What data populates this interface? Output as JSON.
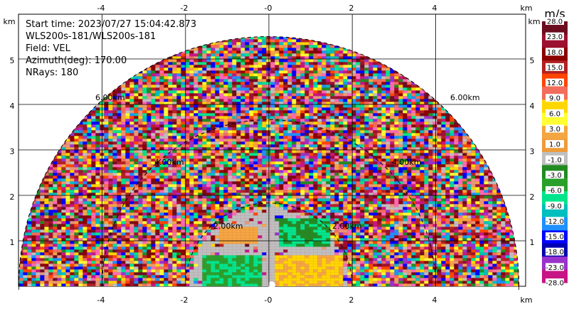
{
  "info": {
    "start_time": "Start time: 2023/07/27 15:04:42.873",
    "instrument": "WLS200s-181/WLS200s-181",
    "field": "Field: VEL",
    "azimuth": "Azimuth(deg): 170.00",
    "nrays": "NRays: 180"
  },
  "axes": {
    "unit_label": "km",
    "x_ticks": [
      "-4",
      "-2",
      "-0",
      "2",
      "4"
    ],
    "y_ticks": [
      "1",
      "2",
      "3",
      "4",
      "5"
    ],
    "x_tick_values": [
      -4,
      -2,
      0,
      2,
      4
    ],
    "y_tick_values": [
      1,
      2,
      3,
      4,
      5
    ],
    "x_range": [
      -6,
      6
    ],
    "y_range": [
      0,
      6
    ]
  },
  "rings": {
    "labels": [
      "2.00km",
      "2.00km",
      "4.00km",
      "4.00km",
      "6.00km",
      "6.00km"
    ],
    "ranges_km": [
      2,
      4,
      6
    ]
  },
  "colorbar": {
    "unit": "m/s",
    "labels": [
      "28.0",
      "23.0",
      "18.0",
      "15.0",
      "12.0",
      "9.0",
      "6.0",
      "3.0",
      "1.0",
      "-1.0",
      "-3.0",
      "-6.0",
      "-9.0",
      "-12.0",
      "-15.0",
      "-18.0",
      "-23.0",
      "-28.0"
    ],
    "colors": [
      "#6b0d1f",
      "#9c1030",
      "#8b0000",
      "#b22222",
      "#ff4500",
      "#f26d5b",
      "#ffd700",
      "#ffff33",
      "#f4a642",
      "#ef9b3b",
      "#bfbfbf",
      "#228b22",
      "#2aa02a",
      "#00e58c",
      "#00bfbf",
      "#1e90ff",
      "#0000ff",
      "#0000b0",
      "#9932cc",
      "#c71585"
    ]
  }
}
